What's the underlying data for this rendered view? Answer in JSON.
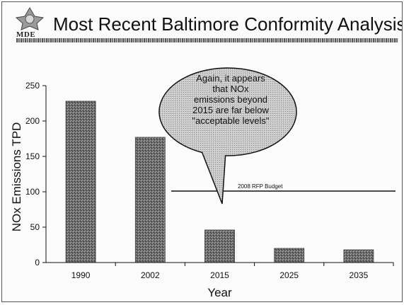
{
  "header": {
    "title": "Most Recent Baltimore Conformity Analysis",
    "logo_text": "MDE"
  },
  "chart_data": {
    "type": "bar",
    "title": "",
    "xlabel": "Year",
    "ylabel": "NOx Emissions TPD",
    "categories": [
      "1990",
      "2002",
      "2015",
      "2025",
      "2035"
    ],
    "values": [
      228,
      177,
      46,
      20,
      18
    ],
    "ylim": [
      0,
      250
    ],
    "yticks": [
      0,
      50,
      100,
      150,
      200,
      250
    ],
    "reference_line": {
      "label": "2008 RFP Budget",
      "value": 101
    },
    "callout": {
      "lines": [
        "Again, it appears",
        "that NOx",
        "emissions beyond",
        "2015 are far below",
        "\"acceptable levels\""
      ]
    },
    "grid": false,
    "bar_color": "#6b6b6b"
  }
}
